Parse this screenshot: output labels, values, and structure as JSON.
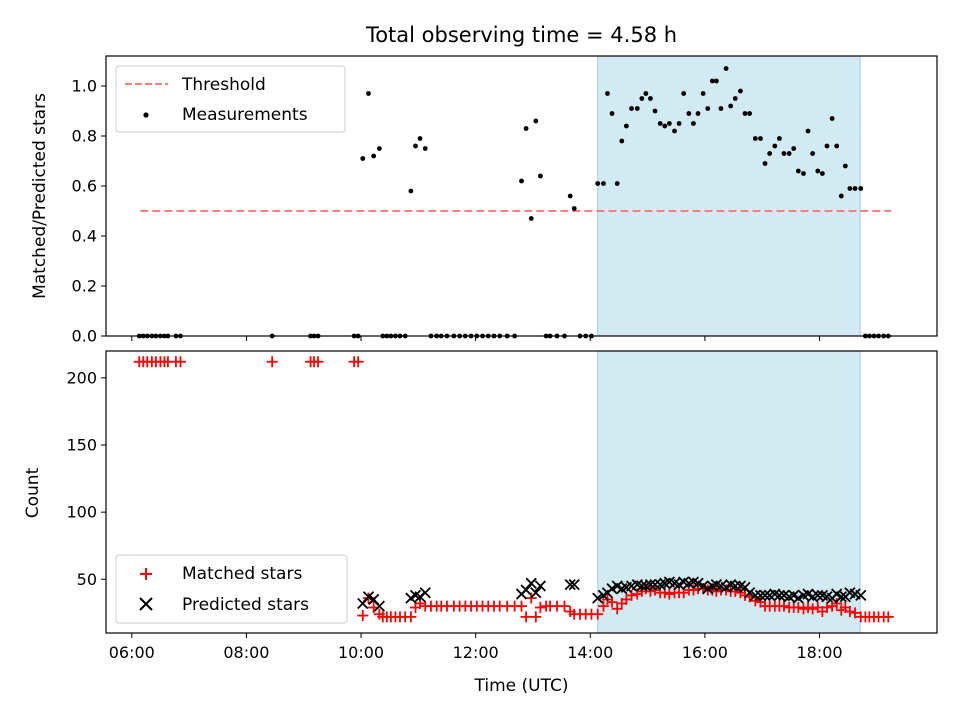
{
  "chart_data": [
    {
      "type": "scatter",
      "title": "Total observing time = 4.58 h",
      "xlabel": "",
      "ylabel": "Matched/Predicted stars",
      "xlim": [
        5.55,
        20.05
      ],
      "ylim": [
        0.0,
        1.12
      ],
      "yticks": [
        0.0,
        0.2,
        0.4,
        0.6,
        0.8,
        1.0
      ],
      "ytick_labels": [
        "0.0",
        "0.2",
        "0.4",
        "0.6",
        "0.8",
        "1.0"
      ],
      "xticks": [
        6,
        8,
        10,
        12,
        14,
        16,
        18
      ],
      "xtick_labels_shown": false,
      "grid": false,
      "legend_position": "top-left",
      "shaded_interval": {
        "start": 14.13,
        "end": 18.71,
        "color": "#add8e6"
      },
      "threshold": {
        "name": "Threshold",
        "value": 0.5,
        "x_start": 6.15,
        "x_end": 19.25,
        "color": "#ff7f7f",
        "style": "dashed"
      },
      "measurements": {
        "name": "Measurements",
        "color": "#000000",
        "x": [
          6.13,
          6.2,
          6.27,
          6.35,
          6.42,
          6.5,
          6.57,
          6.63,
          6.77,
          6.85,
          8.45,
          9.12,
          9.18,
          9.25,
          9.88,
          9.95,
          10.03,
          10.13,
          10.22,
          10.32,
          10.38,
          10.45,
          10.52,
          10.6,
          10.68,
          10.77,
          10.87,
          10.95,
          11.03,
          11.12,
          11.22,
          11.32,
          11.4,
          11.5,
          11.62,
          11.72,
          11.82,
          11.92,
          12.02,
          12.12,
          12.22,
          12.32,
          12.42,
          12.55,
          12.68,
          12.8,
          12.88,
          12.97,
          13.05,
          13.13,
          13.23,
          13.3,
          13.42,
          13.55,
          13.65,
          13.72,
          13.82,
          13.92,
          14.02,
          14.13,
          14.23,
          14.3,
          14.38,
          14.47,
          14.55,
          14.63,
          14.72,
          14.82,
          14.9,
          14.97,
          15.05,
          15.13,
          15.22,
          15.3,
          15.38,
          15.47,
          15.55,
          15.63,
          15.72,
          15.8,
          15.88,
          15.97,
          16.05,
          16.13,
          16.2,
          16.28,
          16.37,
          16.45,
          16.53,
          16.62,
          16.7,
          16.78,
          16.88,
          16.97,
          17.05,
          17.13,
          17.22,
          17.3,
          17.38,
          17.47,
          17.55,
          17.63,
          17.72,
          17.8,
          17.88,
          17.97,
          18.05,
          18.13,
          18.22,
          18.3,
          18.38,
          18.45,
          18.53,
          18.62,
          18.72,
          18.8,
          18.87,
          18.95,
          19.03,
          19.12,
          19.2
        ],
        "y": [
          0,
          0,
          0,
          0,
          0,
          0,
          0,
          0,
          0,
          0,
          0,
          0,
          0,
          0,
          0,
          0,
          0.71,
          0.97,
          0.72,
          0.75,
          0,
          0,
          0,
          0,
          0,
          0,
          0.58,
          0.76,
          0.79,
          0.75,
          0,
          0,
          0,
          0,
          0,
          0,
          0,
          0,
          0,
          0,
          0,
          0,
          0,
          0,
          0,
          0.62,
          0.83,
          0.47,
          0.86,
          0.64,
          0,
          0,
          0,
          0,
          0.56,
          0.51,
          0,
          0,
          0,
          0.61,
          0.61,
          0.97,
          0.89,
          0.61,
          0.78,
          0.84,
          0.91,
          0.91,
          0.95,
          0.97,
          0.95,
          0.9,
          0.85,
          0.84,
          0.85,
          0.82,
          0.85,
          0.97,
          0.89,
          0.85,
          0.89,
          0.97,
          0.91,
          1.02,
          1.02,
          0.91,
          1.07,
          0.92,
          0.95,
          0.98,
          0.89,
          0.89,
          0.79,
          0.79,
          0.69,
          0.73,
          0.76,
          0.79,
          0.73,
          0.73,
          0.75,
          0.66,
          0.65,
          0.82,
          0.73,
          0.66,
          0.65,
          0.76,
          0.87,
          0.76,
          0.56,
          0.68,
          0.59,
          0.59,
          0.59,
          0,
          0,
          0,
          0,
          0,
          0
        ]
      }
    },
    {
      "type": "scatter",
      "title": "",
      "xlabel": "Time (UTC)",
      "ylabel": "Count",
      "xlim": [
        5.55,
        20.05
      ],
      "ylim": [
        10,
        220
      ],
      "yticks": [
        50,
        100,
        150,
        200
      ],
      "ytick_labels": [
        "50",
        "100",
        "150",
        "200"
      ],
      "xticks": [
        6,
        8,
        10,
        12,
        14,
        16,
        18
      ],
      "xtick_labels": [
        "06:00",
        "08:00",
        "10:00",
        "12:00",
        "14:00",
        "16:00",
        "18:00"
      ],
      "grid": false,
      "legend_position": "bottom-left",
      "shaded_interval": {
        "start": 14.13,
        "end": 18.71,
        "color": "#add8e6"
      },
      "matched": {
        "name": "Matched stars",
        "color": "#ff0000",
        "marker": "plus",
        "x": [
          6.13,
          6.2,
          6.27,
          6.35,
          6.42,
          6.5,
          6.57,
          6.63,
          6.77,
          6.85,
          8.45,
          9.12,
          9.18,
          9.25,
          9.88,
          9.95,
          10.03,
          10.13,
          10.22,
          10.32,
          10.38,
          10.45,
          10.52,
          10.6,
          10.68,
          10.77,
          10.87,
          10.95,
          11.03,
          11.12,
          11.22,
          11.32,
          11.4,
          11.5,
          11.62,
          11.72,
          11.82,
          11.92,
          12.02,
          12.12,
          12.22,
          12.32,
          12.42,
          12.55,
          12.68,
          12.8,
          12.88,
          12.97,
          13.05,
          13.13,
          13.23,
          13.3,
          13.42,
          13.55,
          13.65,
          13.72,
          13.82,
          13.92,
          14.02,
          14.13,
          14.23,
          14.3,
          14.38,
          14.47,
          14.55,
          14.63,
          14.72,
          14.82,
          14.9,
          14.97,
          15.05,
          15.13,
          15.22,
          15.3,
          15.38,
          15.47,
          15.55,
          15.63,
          15.72,
          15.8,
          15.88,
          15.97,
          16.05,
          16.13,
          16.2,
          16.28,
          16.37,
          16.45,
          16.53,
          16.62,
          16.7,
          16.78,
          16.88,
          16.97,
          17.05,
          17.13,
          17.22,
          17.3,
          17.38,
          17.47,
          17.55,
          17.63,
          17.72,
          17.8,
          17.88,
          17.97,
          18.05,
          18.13,
          18.22,
          18.3,
          18.38,
          18.45,
          18.53,
          18.62,
          18.72,
          18.8,
          18.87,
          18.95,
          19.03,
          19.12,
          19.2
        ],
        "y": [
          212,
          212,
          212,
          212,
          212,
          212,
          212,
          212,
          212,
          212,
          212,
          212,
          212,
          212,
          212,
          212,
          23,
          36,
          29,
          24,
          22,
          22,
          22,
          22,
          22,
          22,
          22,
          29,
          32,
          30,
          30,
          30,
          30,
          30,
          30,
          30,
          30,
          30,
          30,
          30,
          30,
          30,
          30,
          30,
          30,
          30,
          22,
          36,
          22,
          29,
          30,
          30,
          30,
          30,
          26,
          24,
          24,
          24,
          24,
          24,
          30,
          35,
          33,
          28,
          32,
          35,
          38,
          39,
          41,
          43,
          41,
          42,
          40,
          40,
          39,
          40,
          40,
          40,
          42,
          42,
          43,
          43,
          42,
          42,
          41,
          42,
          42,
          41,
          41,
          40,
          38,
          37,
          34,
          33,
          30,
          30,
          30,
          30,
          30,
          29,
          29,
          29,
          28,
          29,
          28,
          29,
          26,
          29,
          30,
          32,
          27,
          29,
          26,
          25,
          22,
          22,
          22,
          22,
          22,
          22,
          22
        ]
      },
      "predicted": {
        "name": "Predicted stars",
        "color": "#000000",
        "marker": "x",
        "x": [
          10.03,
          10.13,
          10.22,
          10.32,
          10.87,
          10.95,
          11.03,
          11.12,
          12.8,
          12.88,
          12.97,
          13.05,
          13.13,
          13.65,
          13.72,
          14.13,
          14.23,
          14.3,
          14.38,
          14.47,
          14.55,
          14.63,
          14.72,
          14.82,
          14.9,
          14.97,
          15.05,
          15.13,
          15.22,
          15.3,
          15.38,
          15.47,
          15.55,
          15.63,
          15.72,
          15.8,
          15.88,
          15.97,
          16.05,
          16.13,
          16.2,
          16.28,
          16.37,
          16.45,
          16.53,
          16.62,
          16.7,
          16.78,
          16.88,
          16.97,
          17.05,
          17.13,
          17.22,
          17.3,
          17.38,
          17.47,
          17.55,
          17.63,
          17.72,
          17.8,
          17.88,
          17.97,
          18.05,
          18.13,
          18.22,
          18.3,
          18.38,
          18.45,
          18.53,
          18.62,
          18.72
        ],
        "y": [
          32,
          37,
          35,
          30,
          36,
          38,
          37,
          40,
          39,
          42,
          47,
          40,
          45,
          46,
          46,
          36,
          38,
          40,
          43,
          45,
          43,
          44,
          45,
          46,
          45,
          45,
          46,
          46,
          46,
          47,
          48,
          47,
          46,
          48,
          47,
          48,
          47,
          45,
          43,
          45,
          46,
          45,
          44,
          46,
          45,
          45,
          44,
          40,
          38,
          38,
          38,
          38,
          39,
          38,
          38,
          37,
          38,
          36,
          38,
          39,
          37,
          38,
          38,
          37,
          36,
          39,
          37,
          37,
          40,
          39,
          38
        ]
      }
    }
  ]
}
